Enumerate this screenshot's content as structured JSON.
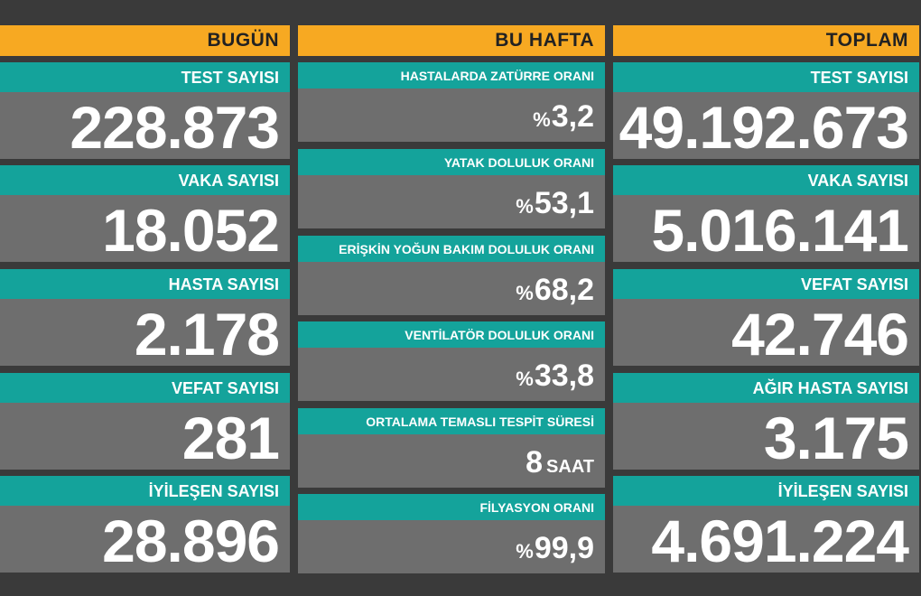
{
  "today": {
    "header": "BUGÜN",
    "items": [
      {
        "label": "TEST SAYISI",
        "value": "228.873"
      },
      {
        "label": "VAKA SAYISI",
        "value": "18.052"
      },
      {
        "label": "HASTA SAYISI",
        "value": "2.178"
      },
      {
        "label": "VEFAT SAYISI",
        "value": "281"
      },
      {
        "label": "İYİLEŞEN SAYISI",
        "value": "28.896"
      }
    ]
  },
  "week": {
    "header": "BU HAFTA",
    "items": [
      {
        "label": "HASTALARDA ZATÜRRE ORANI",
        "prefix": "%",
        "value": "3,2"
      },
      {
        "label": "YATAK DOLULUK ORANI",
        "prefix": "%",
        "value": "53,1"
      },
      {
        "label": "ERİŞKİN YOĞUN BAKIM DOLULUK ORANI",
        "prefix": "%",
        "value": "68,2"
      },
      {
        "label": "VENTİLATÖR DOLULUK ORANI",
        "prefix": "%",
        "value": "33,8"
      },
      {
        "label": "ORTALAMA TEMASLI TESPİT SÜRESİ",
        "value": "8",
        "unit": "SAAT"
      },
      {
        "label": "FİLYASYON ORANI",
        "prefix": "%",
        "value": "99,9"
      }
    ]
  },
  "total": {
    "header": "TOPLAM",
    "items": [
      {
        "label": "TEST SAYISI",
        "value": "49.192.673"
      },
      {
        "label": "VAKA SAYISI",
        "value": "5.016.141"
      },
      {
        "label": "VEFAT SAYISI",
        "value": "42.746"
      },
      {
        "label": "AĞIR HASTA SAYISI",
        "value": "3.175"
      },
      {
        "label": "İYİLEŞEN SAYISI",
        "value": "4.691.224"
      }
    ]
  },
  "colors": {
    "background": "#3a3a3a",
    "header": "#f7a922",
    "label": "#14a39b",
    "value": "#6e6e6e"
  }
}
